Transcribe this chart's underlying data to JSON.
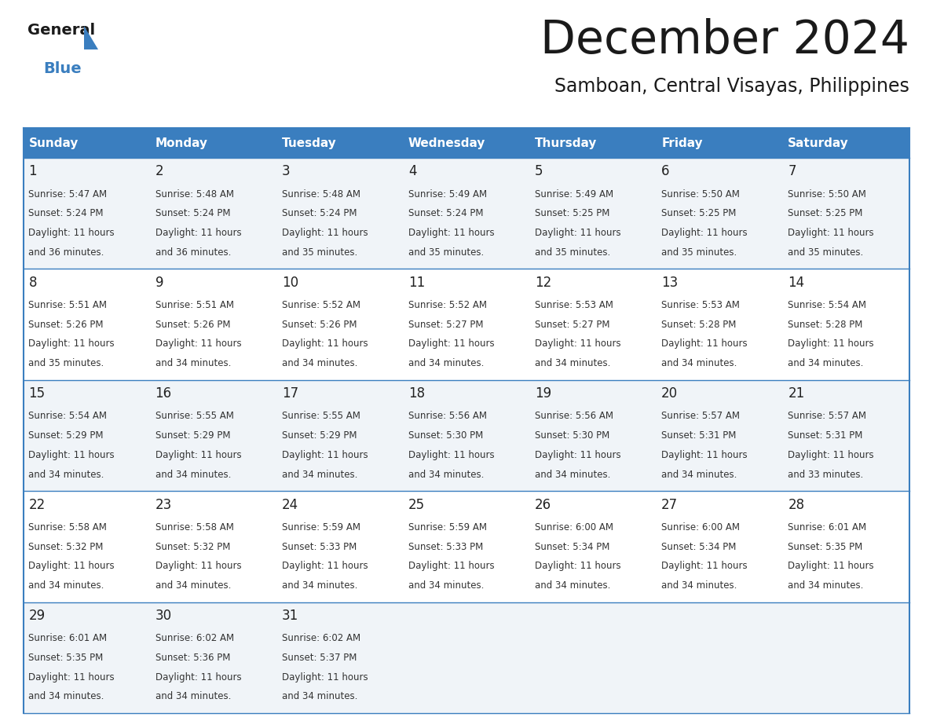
{
  "title": "December 2024",
  "subtitle": "Samboan, Central Visayas, Philippines",
  "header_color": "#3a7ebf",
  "header_text_color": "#ffffff",
  "weekdays": [
    "Sunday",
    "Monday",
    "Tuesday",
    "Wednesday",
    "Thursday",
    "Friday",
    "Saturday"
  ],
  "bg_color": "#ffffff",
  "border_color": "#3a7ebf",
  "text_color": "#333333",
  "days": [
    {
      "day": 1,
      "col": 0,
      "row": 0,
      "sunrise": "5:47 AM",
      "sunset": "5:24 PM",
      "daylight_hours": 11,
      "daylight_minutes": 36
    },
    {
      "day": 2,
      "col": 1,
      "row": 0,
      "sunrise": "5:48 AM",
      "sunset": "5:24 PM",
      "daylight_hours": 11,
      "daylight_minutes": 36
    },
    {
      "day": 3,
      "col": 2,
      "row": 0,
      "sunrise": "5:48 AM",
      "sunset": "5:24 PM",
      "daylight_hours": 11,
      "daylight_minutes": 35
    },
    {
      "day": 4,
      "col": 3,
      "row": 0,
      "sunrise": "5:49 AM",
      "sunset": "5:24 PM",
      "daylight_hours": 11,
      "daylight_minutes": 35
    },
    {
      "day": 5,
      "col": 4,
      "row": 0,
      "sunrise": "5:49 AM",
      "sunset": "5:25 PM",
      "daylight_hours": 11,
      "daylight_minutes": 35
    },
    {
      "day": 6,
      "col": 5,
      "row": 0,
      "sunrise": "5:50 AM",
      "sunset": "5:25 PM",
      "daylight_hours": 11,
      "daylight_minutes": 35
    },
    {
      "day": 7,
      "col": 6,
      "row": 0,
      "sunrise": "5:50 AM",
      "sunset": "5:25 PM",
      "daylight_hours": 11,
      "daylight_minutes": 35
    },
    {
      "day": 8,
      "col": 0,
      "row": 1,
      "sunrise": "5:51 AM",
      "sunset": "5:26 PM",
      "daylight_hours": 11,
      "daylight_minutes": 35
    },
    {
      "day": 9,
      "col": 1,
      "row": 1,
      "sunrise": "5:51 AM",
      "sunset": "5:26 PM",
      "daylight_hours": 11,
      "daylight_minutes": 34
    },
    {
      "day": 10,
      "col": 2,
      "row": 1,
      "sunrise": "5:52 AM",
      "sunset": "5:26 PM",
      "daylight_hours": 11,
      "daylight_minutes": 34
    },
    {
      "day": 11,
      "col": 3,
      "row": 1,
      "sunrise": "5:52 AM",
      "sunset": "5:27 PM",
      "daylight_hours": 11,
      "daylight_minutes": 34
    },
    {
      "day": 12,
      "col": 4,
      "row": 1,
      "sunrise": "5:53 AM",
      "sunset": "5:27 PM",
      "daylight_hours": 11,
      "daylight_minutes": 34
    },
    {
      "day": 13,
      "col": 5,
      "row": 1,
      "sunrise": "5:53 AM",
      "sunset": "5:28 PM",
      "daylight_hours": 11,
      "daylight_minutes": 34
    },
    {
      "day": 14,
      "col": 6,
      "row": 1,
      "sunrise": "5:54 AM",
      "sunset": "5:28 PM",
      "daylight_hours": 11,
      "daylight_minutes": 34
    },
    {
      "day": 15,
      "col": 0,
      "row": 2,
      "sunrise": "5:54 AM",
      "sunset": "5:29 PM",
      "daylight_hours": 11,
      "daylight_minutes": 34
    },
    {
      "day": 16,
      "col": 1,
      "row": 2,
      "sunrise": "5:55 AM",
      "sunset": "5:29 PM",
      "daylight_hours": 11,
      "daylight_minutes": 34
    },
    {
      "day": 17,
      "col": 2,
      "row": 2,
      "sunrise": "5:55 AM",
      "sunset": "5:29 PM",
      "daylight_hours": 11,
      "daylight_minutes": 34
    },
    {
      "day": 18,
      "col": 3,
      "row": 2,
      "sunrise": "5:56 AM",
      "sunset": "5:30 PM",
      "daylight_hours": 11,
      "daylight_minutes": 34
    },
    {
      "day": 19,
      "col": 4,
      "row": 2,
      "sunrise": "5:56 AM",
      "sunset": "5:30 PM",
      "daylight_hours": 11,
      "daylight_minutes": 34
    },
    {
      "day": 20,
      "col": 5,
      "row": 2,
      "sunrise": "5:57 AM",
      "sunset": "5:31 PM",
      "daylight_hours": 11,
      "daylight_minutes": 34
    },
    {
      "day": 21,
      "col": 6,
      "row": 2,
      "sunrise": "5:57 AM",
      "sunset": "5:31 PM",
      "daylight_hours": 11,
      "daylight_minutes": 33
    },
    {
      "day": 22,
      "col": 0,
      "row": 3,
      "sunrise": "5:58 AM",
      "sunset": "5:32 PM",
      "daylight_hours": 11,
      "daylight_minutes": 34
    },
    {
      "day": 23,
      "col": 1,
      "row": 3,
      "sunrise": "5:58 AM",
      "sunset": "5:32 PM",
      "daylight_hours": 11,
      "daylight_minutes": 34
    },
    {
      "day": 24,
      "col": 2,
      "row": 3,
      "sunrise": "5:59 AM",
      "sunset": "5:33 PM",
      "daylight_hours": 11,
      "daylight_minutes": 34
    },
    {
      "day": 25,
      "col": 3,
      "row": 3,
      "sunrise": "5:59 AM",
      "sunset": "5:33 PM",
      "daylight_hours": 11,
      "daylight_minutes": 34
    },
    {
      "day": 26,
      "col": 4,
      "row": 3,
      "sunrise": "6:00 AM",
      "sunset": "5:34 PM",
      "daylight_hours": 11,
      "daylight_minutes": 34
    },
    {
      "day": 27,
      "col": 5,
      "row": 3,
      "sunrise": "6:00 AM",
      "sunset": "5:34 PM",
      "daylight_hours": 11,
      "daylight_minutes": 34
    },
    {
      "day": 28,
      "col": 6,
      "row": 3,
      "sunrise": "6:01 AM",
      "sunset": "5:35 PM",
      "daylight_hours": 11,
      "daylight_minutes": 34
    },
    {
      "day": 29,
      "col": 0,
      "row": 4,
      "sunrise": "6:01 AM",
      "sunset": "5:35 PM",
      "daylight_hours": 11,
      "daylight_minutes": 34
    },
    {
      "day": 30,
      "col": 1,
      "row": 4,
      "sunrise": "6:02 AM",
      "sunset": "5:36 PM",
      "daylight_hours": 11,
      "daylight_minutes": 34
    },
    {
      "day": 31,
      "col": 2,
      "row": 4,
      "sunrise": "6:02 AM",
      "sunset": "5:37 PM",
      "daylight_hours": 11,
      "daylight_minutes": 34
    }
  ]
}
